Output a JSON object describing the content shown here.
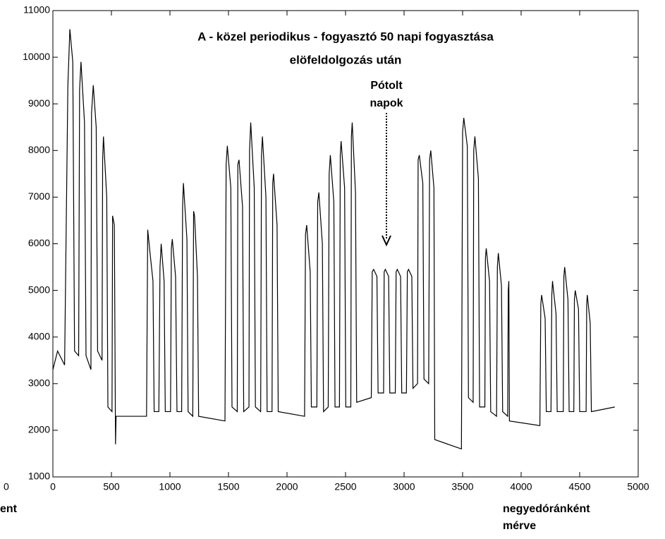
{
  "chart_data": {
    "type": "line",
    "title": [
      "A - közel periodikus - fogyasztó 50 napi fogyasztása",
      "elöfeldolgozás után"
    ],
    "xlabel": [
      "negyedóránként",
      "mérve"
    ],
    "annotation": [
      "Pótolt",
      "napok"
    ],
    "clipped_texts": [
      "0",
      "ent"
    ],
    "xlim": [
      0,
      5000
    ],
    "ylim": [
      1000,
      11000
    ],
    "xticks": [
      0,
      500,
      1000,
      1500,
      2000,
      2500,
      3000,
      3500,
      4000,
      4500,
      5000
    ],
    "yticks": [
      1000,
      2000,
      3000,
      4000,
      5000,
      6000,
      7000,
      8000,
      9000,
      10000,
      11000
    ],
    "series": [
      {
        "color": "#000000",
        "x": [
          0,
          40,
          100,
          128,
          145,
          170,
          185,
          220,
          228,
          240,
          270,
          283,
          325,
          330,
          345,
          370,
          382,
          420,
          425,
          432,
          460,
          470,
          505,
          510,
          525,
          535,
          540,
          800,
          810,
          830,
          855,
          865,
          905,
          915,
          925,
          950,
          960,
          1005,
          1012,
          1020,
          1048,
          1060,
          1100,
          1108,
          1115,
          1145,
          1155,
          1195,
          1202,
          1210,
          1235,
          1245,
          1470,
          1480,
          1490,
          1520,
          1530,
          1575,
          1580,
          1590,
          1620,
          1630,
          1675,
          1680,
          1690,
          1720,
          1730,
          1775,
          1782,
          1790,
          1820,
          1830,
          1872,
          1878,
          1885,
          1915,
          1925,
          2150,
          2158,
          2168,
          2198,
          2208,
          2255,
          2262,
          2272,
          2302,
          2312,
          2352,
          2360,
          2370,
          2400,
          2410,
          2448,
          2455,
          2462,
          2492,
          2502,
          2545,
          2550,
          2557,
          2585,
          2595,
          2720,
          2728,
          2740,
          2768,
          2778,
          2825,
          2830,
          2840,
          2868,
          2878,
          2925,
          2932,
          2942,
          2970,
          2980,
          3020,
          3028,
          3038,
          3066,
          3076,
          3115,
          3120,
          3130,
          3160,
          3170,
          3210,
          3218,
          3228,
          3255,
          3262,
          3490,
          3500,
          3510,
          3540,
          3550,
          3590,
          3595,
          3605,
          3635,
          3645,
          3690,
          3695,
          3702,
          3730,
          3740,
          3790,
          3797,
          3805,
          3832,
          3842,
          3885,
          3890,
          3895,
          3900,
          4160,
          4168,
          4175,
          4205,
          4215,
          4255,
          4262,
          4268,
          4298,
          4308,
          4360,
          4365,
          4372,
          4400,
          4410,
          4450,
          4455,
          4462,
          4490,
          4500,
          4555,
          4560,
          4565,
          4590,
          4600,
          4800
        ],
        "values": [
          3300,
          3700,
          3400,
          9400,
          10600,
          9900,
          3700,
          3600,
          9300,
          9900,
          8600,
          3600,
          3300,
          8800,
          9400,
          8500,
          3700,
          3500,
          7800,
          8300,
          7000,
          2500,
          2400,
          6600,
          6400,
          1700,
          2300,
          2300,
          6300,
          5800,
          5200,
          2400,
          2400,
          5500,
          6000,
          5200,
          2400,
          2400,
          5900,
          6100,
          5300,
          2400,
          2400,
          6800,
          7300,
          6100,
          2400,
          2300,
          6700,
          6600,
          5300,
          2300,
          2200,
          7700,
          8100,
          7200,
          2500,
          2400,
          7700,
          7800,
          6800,
          2400,
          2500,
          8000,
          8600,
          7200,
          2500,
          2400,
          7900,
          8300,
          7000,
          2400,
          2400,
          7300,
          7500,
          6400,
          2400,
          2300,
          6200,
          6400,
          5400,
          2500,
          2500,
          6900,
          7100,
          6000,
          2400,
          2500,
          7500,
          7900,
          6900,
          2500,
          2500,
          7900,
          8200,
          7200,
          2500,
          2500,
          8300,
          8600,
          7100,
          2600,
          2700,
          5400,
          5450,
          5300,
          2800,
          2800,
          5400,
          5450,
          5300,
          2800,
          2800,
          5400,
          5450,
          5300,
          2800,
          2800,
          5400,
          5450,
          5300,
          2900,
          3000,
          7800,
          7900,
          7300,
          3100,
          3000,
          7800,
          8000,
          7200,
          1800,
          1600,
          8400,
          8700,
          8100,
          2700,
          2600,
          8000,
          8300,
          7400,
          2500,
          2500,
          5700,
          5900,
          5200,
          2400,
          2300,
          5500,
          5800,
          5100,
          2400,
          2300,
          5000,
          5200,
          2200,
          2100,
          4700,
          4900,
          4400,
          2400,
          2400,
          4900,
          5200,
          4500,
          2400,
          2400,
          5300,
          5500,
          4800,
          2400,
          2400,
          4800,
          5000,
          4600,
          2400,
          2400,
          4700,
          4900,
          4300,
          2400,
          2500
        ]
      }
    ]
  }
}
